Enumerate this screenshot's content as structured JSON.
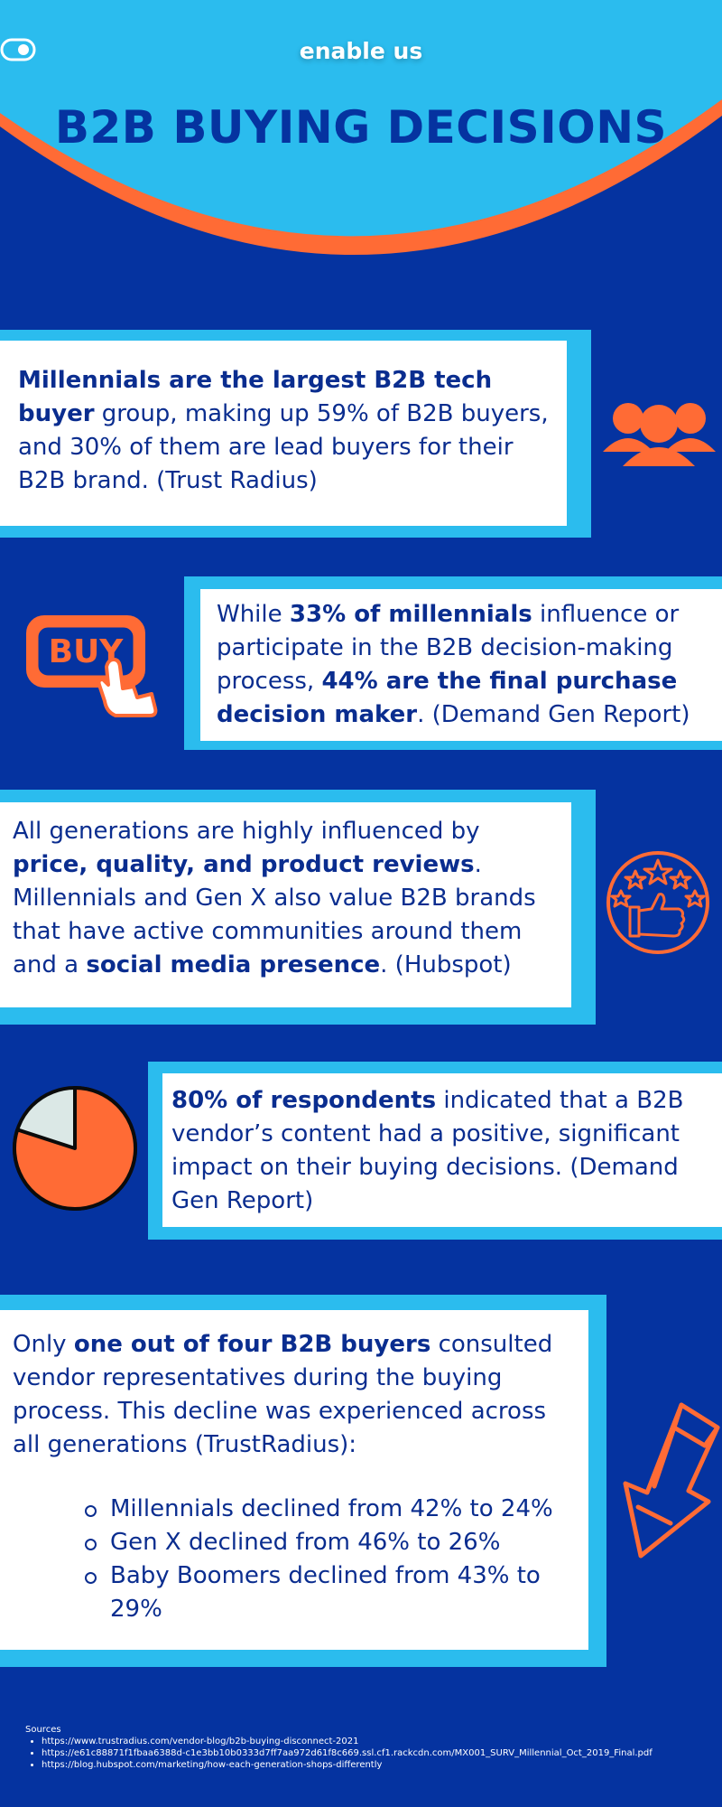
{
  "header": {
    "logo_text": "enable us",
    "title": "B2B BUYING DECISIONS"
  },
  "colors": {
    "background": "#0533a0",
    "header_blue": "#2bbcee",
    "accent_orange": "#ff6b35",
    "text_navy": "#0a2d8f"
  },
  "cards": [
    {
      "bold_1": "Millennials are the largest B2B tech buyer",
      "text_1": " group, making up 59% of B2B buyers, and 30% of them are lead buyers for their B2B brand. (Trust Radius)",
      "icon": "people-group-icon"
    },
    {
      "text_1": "While ",
      "bold_1": "33% of millennials",
      "text_2": " influence or participate in the B2B decision-making process, ",
      "bold_2": "44% are the final purchase decision maker",
      "text_3": ". (Demand Gen Report)",
      "icon": "buy-button-icon",
      "icon_label": "BUY"
    },
    {
      "text_1": "All generations are highly influenced by ",
      "bold_1": "price, quality, and product reviews",
      "text_2": ". Millennials and Gen X also value B2B brands that have active communities around them and a ",
      "bold_2": "social media presence",
      "text_3": ". (Hubspot)",
      "icon": "thumbs-up-stars-icon"
    },
    {
      "bold_1": "80% of respondents",
      "text_1": " indicated that a B2B vendor’s content had a positive, significant impact on their buying decisions. (Demand Gen Report)",
      "icon": "pie-chart-icon",
      "pie_value": 0.8
    },
    {
      "text_1": "Only ",
      "bold_1": "one out of four B2B buyers",
      "text_2": " consulted vendor representatives during the buying process. This decline was experienced across all generations (TrustRadius):",
      "bullets": [
        "Millennials declined from 42% to 24%",
        "Gen X declined from 46% to 26%",
        "Baby Boomers declined from 43% to 29%"
      ],
      "icon": "down-arrow-icon"
    }
  ],
  "sources": {
    "heading": "Sources",
    "items": [
      "https://www.trustradius.com/vendor-blog/b2b-buying-disconnect-2021",
      "https://e61c88871f1fbaa6388d-c1e3bb10b0333d7ff7aa972d61f8c669.ssl.cf1.rackcdn.com/MX001_SURV_Millennial_Oct_2019_Final.pdf",
      "https://blog.hubspot.com/marketing/how-each-generation-shops-differently"
    ]
  }
}
